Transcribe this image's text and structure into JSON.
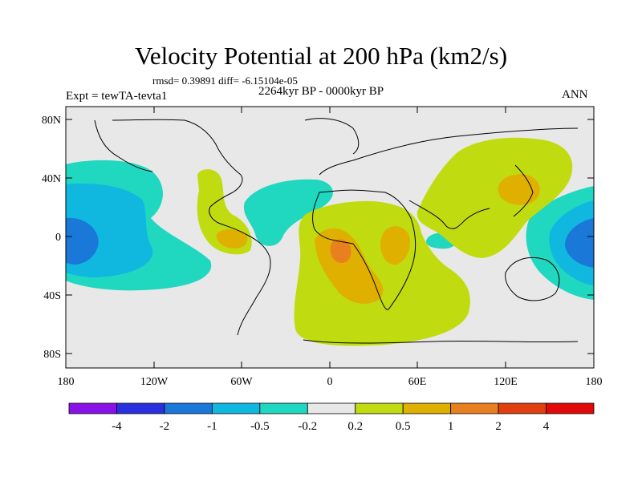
{
  "title": "Velocity Potential at 200 hPa (km2/s)",
  "stats": "rmsd= 0.39891 diff= -6.15104e-05",
  "experiment": "Expt = tewTA-tevta1",
  "period": "2264kyr BP - 0000kyr BP",
  "season": "ANN",
  "y_axis": [
    "80N",
    "40N",
    "0",
    "40S",
    "80S"
  ],
  "x_axis": [
    "180",
    "120W",
    "60W",
    "0",
    "60E",
    "120E",
    "180"
  ],
  "colorbar": {
    "colors": [
      "#8a10e8",
      "#2a30e0",
      "#1a78d8",
      "#10b8e0",
      "#20d8c0",
      "#e8e8e8",
      "#c0dc10",
      "#e0b000",
      "#e88020",
      "#e04010",
      "#e00808"
    ],
    "labels": [
      "-4",
      "-2",
      "-1",
      "-0.5",
      "-0.2",
      "0.2",
      "0.5",
      "1",
      "2",
      "4"
    ]
  }
}
